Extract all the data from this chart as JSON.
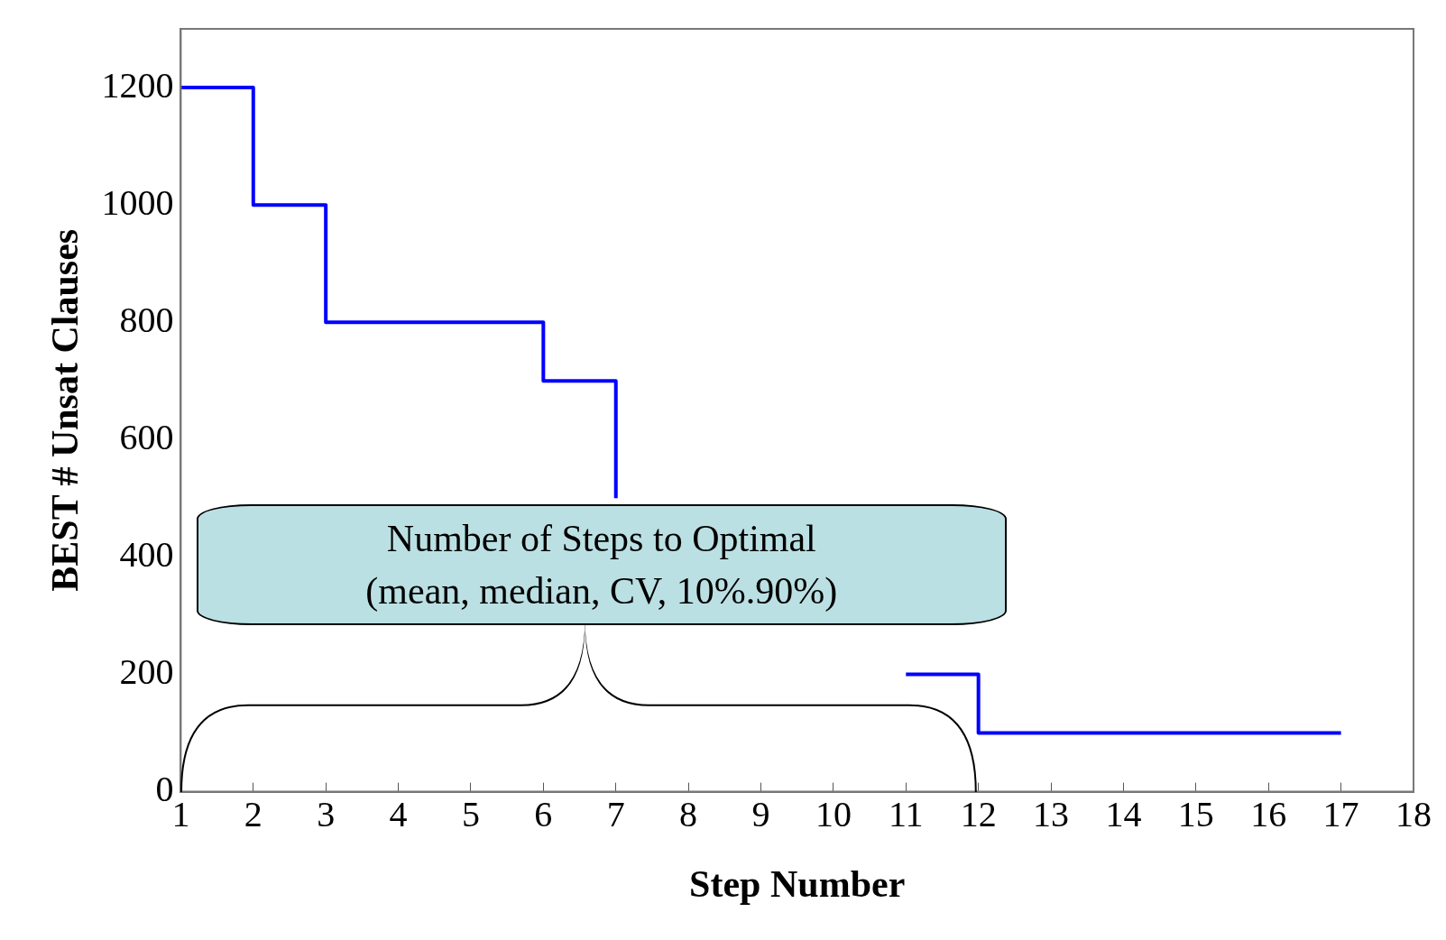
{
  "chart_data": {
    "type": "step",
    "xlabel": "Step Number",
    "ylabel": "BEST # Unsat Clauses",
    "x": [
      1,
      2,
      3,
      6,
      7,
      8,
      11,
      12,
      17
    ],
    "series": [
      {
        "color": "#0000ff",
        "values": [
          1200,
          1000,
          800,
          700,
          500,
          null,
          200,
          100,
          100
        ]
      }
    ],
    "xlim": [
      1,
      18
    ],
    "xticks": [
      1,
      2,
      3,
      4,
      5,
      6,
      7,
      8,
      9,
      10,
      11,
      12,
      13,
      14,
      15,
      16,
      17,
      18
    ],
    "ylim": [
      0,
      1300
    ],
    "yticks": [
      0,
      200,
      400,
      600,
      800,
      1000,
      1200
    ],
    "grid": false,
    "legend": false,
    "marker": "none",
    "line_style": "solid",
    "annotations": [
      "Number of Steps to Optimal\n(mean, median, CV, 10%.90%)"
    ]
  }
}
